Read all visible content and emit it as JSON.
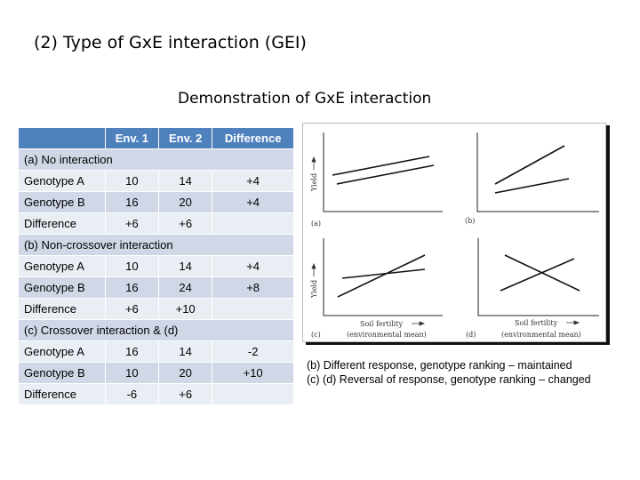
{
  "slide": {
    "title": "(2) Type of GxE interaction (GEI)",
    "subtitle": "Demonstration of GxE interaction"
  },
  "table": {
    "headers": [
      "",
      "Env.  1",
      "Env. 2",
      "Difference"
    ],
    "rows": [
      {
        "section": "(a) No interaction"
      },
      {
        "cells": [
          "Genotype A",
          "10",
          "14",
          "+4"
        ]
      },
      {
        "cells": [
          "Genotype B",
          "16",
          "20",
          "+4"
        ]
      },
      {
        "cells": [
          "Difference",
          "+6",
          "+6",
          ""
        ]
      },
      {
        "section": "(b) Non-crossover interaction"
      },
      {
        "cells": [
          "Genotype A",
          "10",
          "14",
          "+4"
        ]
      },
      {
        "cells": [
          "Genotype B",
          "16",
          "24",
          "+8"
        ]
      },
      {
        "cells": [
          "Difference",
          "+6",
          "+10",
          ""
        ]
      },
      {
        "section": "(c) Crossover interaction & (d)"
      },
      {
        "cells": [
          "Genotype A",
          "16",
          "14",
          "-2"
        ]
      },
      {
        "cells": [
          "Genotype B",
          "10",
          "20",
          "+10"
        ]
      },
      {
        "cells": [
          "Difference",
          "-6",
          "+6",
          ""
        ]
      }
    ]
  },
  "figure": {
    "ylabel": "Yield",
    "xlabel1": "Soil fertility",
    "xlabel2": "(environmental mean)",
    "panels": [
      "(a)",
      "(b)",
      "(c)",
      "(d)"
    ]
  },
  "notes": [
    "(b) Different response, genotype ranking – maintained",
    "(c) (d) Reversal of response, genotype ranking – changed"
  ],
  "colors": {
    "header": "#4f81bd",
    "row_dark": "#d0d8e8",
    "row_light": "#e9edf4"
  }
}
